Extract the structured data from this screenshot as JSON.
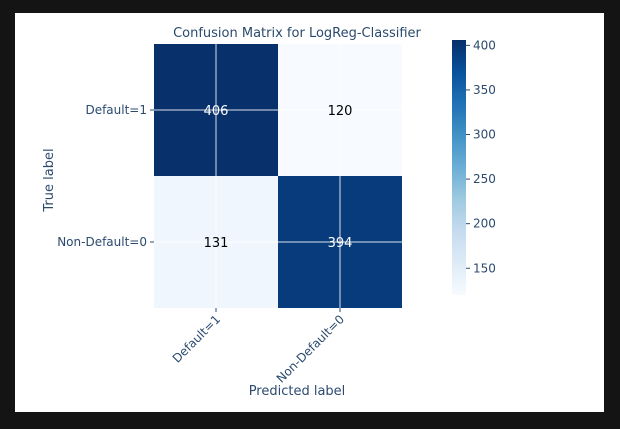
{
  "chart_data": {
    "type": "heatmap",
    "title": "Confusion Matrix for LogReg-Classifier",
    "xlabel": "Predicted label",
    "ylabel": "True label",
    "x_categories": [
      "Default=1",
      "Non-Default=0"
    ],
    "y_categories": [
      "Default=1",
      "Non-Default=0"
    ],
    "values": [
      [
        406,
        120
      ],
      [
        131,
        394
      ]
    ],
    "colormap": "Blues",
    "colorbar": {
      "range": [
        120,
        406
      ],
      "ticks": [
        150,
        200,
        250,
        300,
        350,
        400
      ]
    },
    "grid": true,
    "colors": {
      "low": "#f7fbff",
      "high": "#08306b",
      "text_dark_cell": "#ffffff",
      "text_light_cell": "#000000",
      "axis_text": "#2b4a6e"
    }
  }
}
